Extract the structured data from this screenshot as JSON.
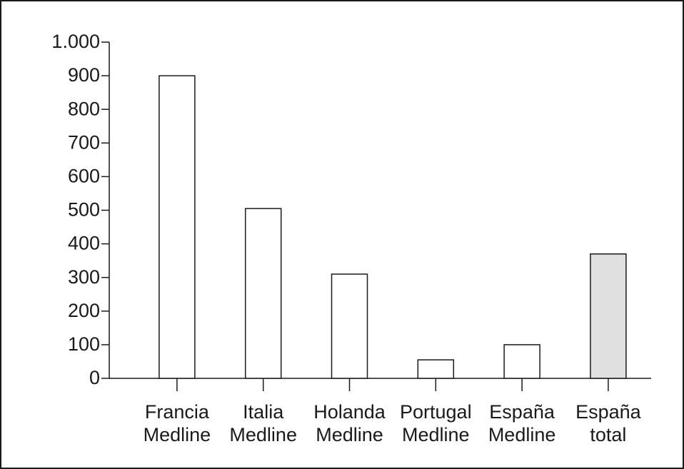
{
  "chart_data": {
    "type": "bar",
    "categories": [
      [
        "Francia",
        "Medline"
      ],
      [
        "Italia",
        "Medline"
      ],
      [
        "Holanda",
        "Medline"
      ],
      [
        "Portugal",
        "Medline"
      ],
      [
        "España",
        "Medline"
      ],
      [
        "España",
        "total"
      ]
    ],
    "values": [
      900,
      505,
      310,
      55,
      100,
      370
    ],
    "colors": [
      "#ffffff",
      "#ffffff",
      "#ffffff",
      "#ffffff",
      "#ffffff",
      "#e0e0e0"
    ],
    "ylim": [
      0,
      1000
    ],
    "yticks": [
      0,
      100,
      200,
      300,
      400,
      500,
      600,
      700,
      800,
      900,
      {
        "value": 1000,
        "label": "1.000"
      }
    ],
    "grid": false
  }
}
